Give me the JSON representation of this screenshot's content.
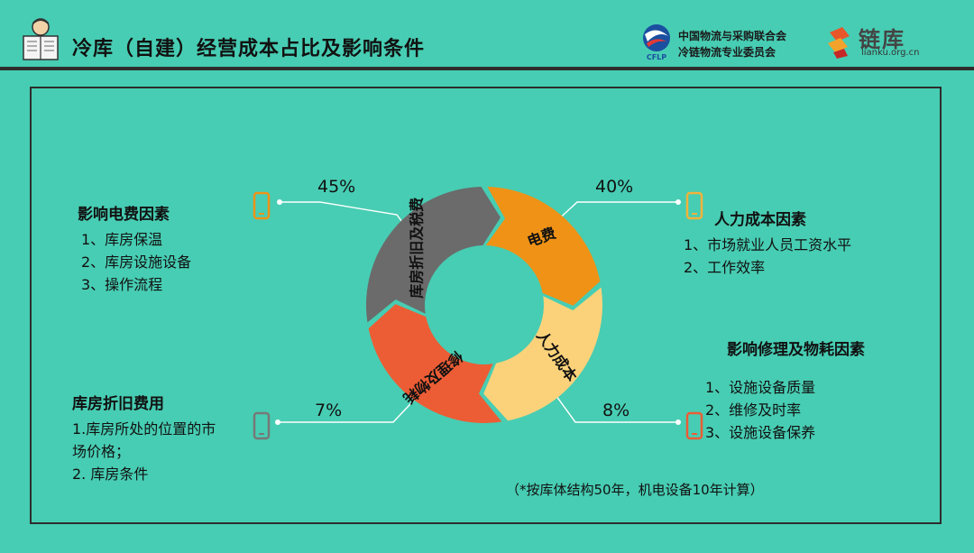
{
  "header": {
    "title": "冷库（自建）经营成本占比及影响条件",
    "cflp_line1": "中国物流与采购联合会",
    "cflp_line2": "冷链物流专业委员会",
    "cflp_logo_text": "CFLP",
    "lianku_name": "链库",
    "lianku_url": "lianku.org.cn"
  },
  "colors": {
    "background": "#47cdb3",
    "electricity": "#ef9216",
    "labor": "#fbd27a",
    "repair": "#ec5d35",
    "depreciation": "#6b6b6b"
  },
  "chart_data": {
    "type": "pie",
    "title": "冷库（自建）经营成本占比及影响条件",
    "segments": [
      {
        "name": "电费",
        "value": 45,
        "label": "45%"
      },
      {
        "name": "人力成本",
        "value": 40,
        "label": "40%"
      },
      {
        "name": "修理及物耗",
        "value": 8,
        "label": "8%"
      },
      {
        "name": "库房折旧及税费",
        "value": 7,
        "label": "7%"
      }
    ]
  },
  "blocks": {
    "electricity": {
      "heading": "影响电费因素",
      "items": [
        "1、库房保温",
        "2、库房设施设备",
        "3、操作流程"
      ]
    },
    "labor": {
      "heading": "人力成本因素",
      "items": [
        "1、市场就业人员工资水平",
        "2、工作效率"
      ]
    },
    "repair": {
      "heading": "影响修理及物耗因素",
      "items": [
        "1、设施设备质量",
        "2、维修及时率",
        "3、设施设备保养"
      ]
    },
    "depreciation": {
      "heading": "库房折旧费用",
      "items": [
        "1.库房所处的位置的市",
        "场价格；",
        "2. 库房条件"
      ]
    }
  },
  "icons": [
    "reader-icon",
    "cflp-logo-icon",
    "lianku-logo-icon",
    "phone-icon"
  ],
  "note": "（*按库体结构50年，机电设备10年计算）"
}
